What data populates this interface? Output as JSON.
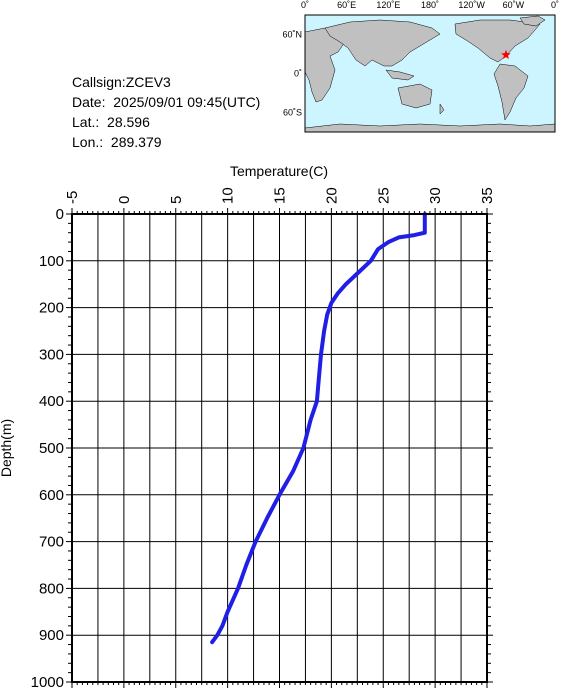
{
  "header": {
    "callsign_label": "Callsign:",
    "callsign": "ZCEV3",
    "date_label": "Date:",
    "date": "2025/09/01 09:45(UTC)",
    "lat_label": "Lat.:",
    "lat": "28.596",
    "lon_label": "Lon.:",
    "lon": "289.379"
  },
  "map": {
    "top_labels": [
      "0˚",
      "60˚E",
      "120˚E",
      "180˚",
      "120˚W",
      "60˚W",
      "0˚"
    ],
    "side_labels": [
      "60˚N",
      "0˚",
      "60˚S"
    ],
    "ocean_color": "#ccf5ff",
    "land_color": "#c0c0c0",
    "marker_color": "#ff0000",
    "marker": "red-star-icon"
  },
  "chart_data": {
    "type": "line",
    "xlabel": "Temperature(C)",
    "ylabel": "Depth(m)",
    "xlim": [
      -5,
      35
    ],
    "ylim": [
      1000,
      0
    ],
    "x_ticks": [
      "-5",
      "0",
      "5",
      "10",
      "15",
      "20",
      "25",
      "30",
      "35"
    ],
    "y_ticks": [
      "0",
      "100",
      "200",
      "300",
      "400",
      "500",
      "600",
      "700",
      "800",
      "900",
      "1000"
    ],
    "grid": true,
    "series": [
      {
        "color": "#1f1fe6",
        "points": [
          [
            29.0,
            0
          ],
          [
            29.0,
            20
          ],
          [
            29.0,
            40
          ],
          [
            28.0,
            45
          ],
          [
            26.5,
            50
          ],
          [
            25.5,
            60
          ],
          [
            24.5,
            75
          ],
          [
            23.8,
            100
          ],
          [
            22.6,
            125
          ],
          [
            21.4,
            150
          ],
          [
            20.6,
            170
          ],
          [
            20.0,
            190
          ],
          [
            19.6,
            215
          ],
          [
            19.3,
            250
          ],
          [
            19.0,
            300
          ],
          [
            18.8,
            350
          ],
          [
            18.6,
            400
          ],
          [
            18.0,
            440
          ],
          [
            17.3,
            500
          ],
          [
            16.3,
            550
          ],
          [
            15.0,
            600
          ],
          [
            13.8,
            650
          ],
          [
            12.7,
            700
          ],
          [
            11.8,
            750
          ],
          [
            11.0,
            800
          ],
          [
            10.0,
            850
          ],
          [
            9.5,
            880
          ],
          [
            9.0,
            900
          ],
          [
            8.5,
            915
          ]
        ]
      }
    ]
  }
}
